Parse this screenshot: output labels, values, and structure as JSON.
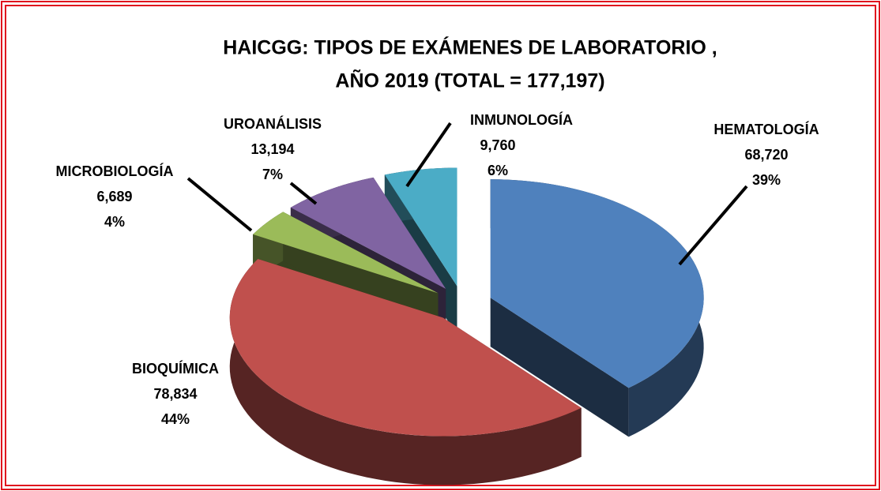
{
  "chart_data": {
    "type": "pie",
    "title_lines": [
      "HAICGG: TIPOS DE EXÁMENES DE LABORATORIO ,",
      "AÑO 2019 (TOTAL =  177,197)"
    ],
    "categories": [
      "HEMATOLOGÍA",
      "BIOQUÍMICA",
      "MICROBIOLOGÍA",
      "UROANÁLISIS",
      "INMUNOLOGÍA"
    ],
    "values": [
      68720,
      78834,
      6689,
      13194,
      9760
    ],
    "value_labels": [
      "68,720",
      "78,834",
      "6,689",
      "13,194",
      "9,760"
    ],
    "percentages": [
      39,
      44,
      4,
      7,
      6
    ],
    "percent_labels": [
      "39%",
      "44%",
      "4%",
      "7%",
      "6%"
    ],
    "colors": [
      "#4f81bd",
      "#c0504d",
      "#9bbb59",
      "#8064a2",
      "#4bacc6"
    ]
  }
}
